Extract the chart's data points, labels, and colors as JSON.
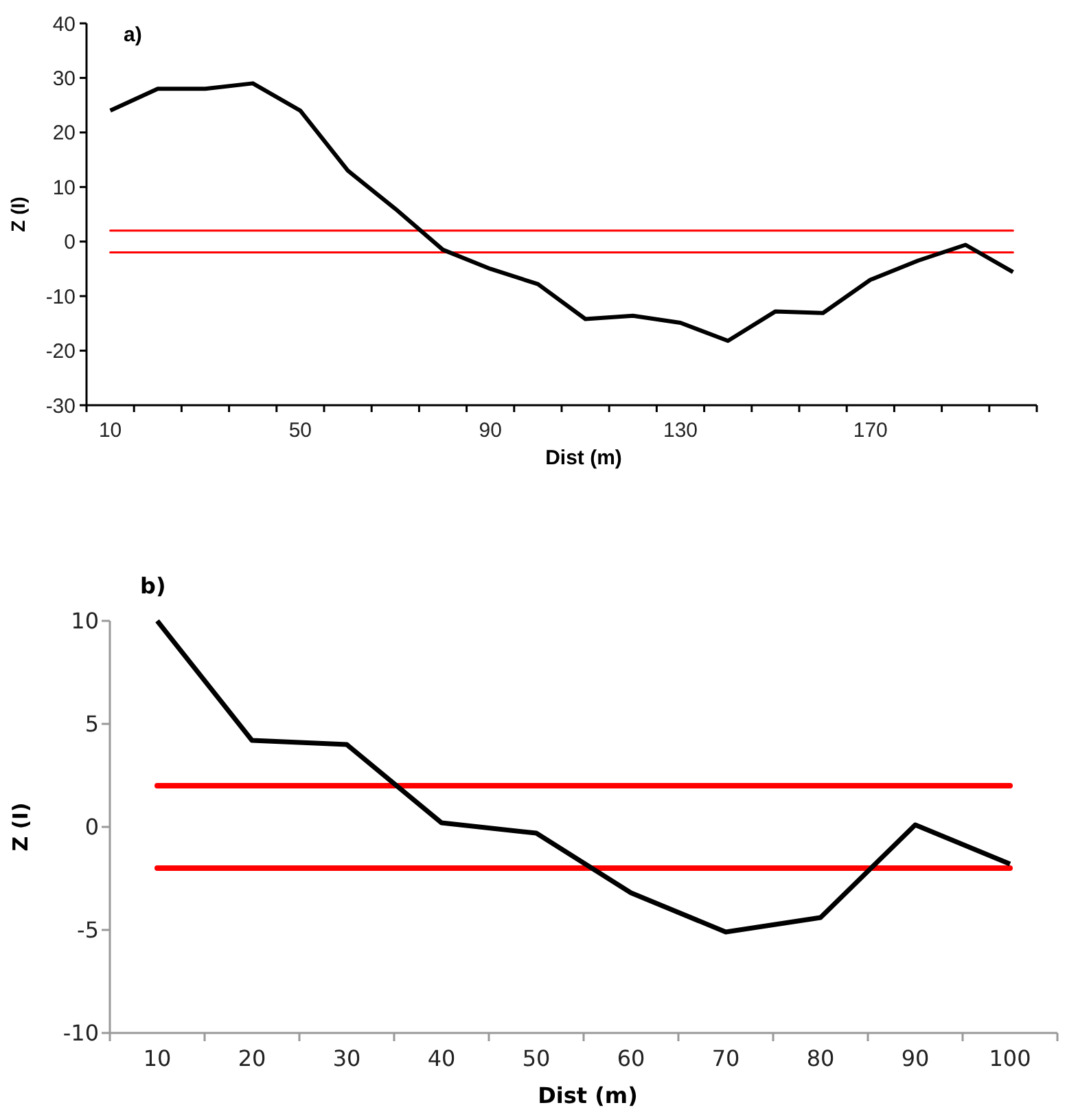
{
  "chart_data": [
    {
      "type": "line",
      "title": "a)",
      "xlabel": "Dist (m)",
      "ylabel": "Z (I)",
      "categories": [
        "10",
        null,
        null,
        null,
        "50",
        null,
        null,
        null,
        "90",
        null,
        null,
        null,
        "130",
        null,
        null,
        null,
        "170",
        null,
        null,
        null
      ],
      "series": [
        {
          "color": "#000000",
          "values": [
            24,
            28,
            28,
            29,
            24,
            13,
            6,
            -1.5,
            -5,
            -7.8,
            -14.2,
            -13.6,
            -14.9,
            -18.2,
            -12.8,
            -13.1,
            -7,
            -3.5,
            -0.6,
            -5.6
          ]
        }
      ],
      "ylim": [
        -30,
        40
      ],
      "yticks": [
        -30,
        -20,
        -10,
        0,
        10,
        20,
        30,
        40
      ],
      "grid": false,
      "marker": "none",
      "line_style": "solid",
      "ref_lines": [
        {
          "axis": "y",
          "value": 2,
          "color": "#ff0000"
        },
        {
          "axis": "y",
          "value": -2,
          "color": "#ff0000"
        }
      ]
    },
    {
      "type": "line",
      "title": "b)",
      "xlabel": "Dist (m)",
      "ylabel": "Z (I)",
      "categories": [
        "10",
        "20",
        "30",
        "40",
        "50",
        "60",
        "70",
        "80",
        "90",
        "100"
      ],
      "series": [
        {
          "color": "#000000",
          "values": [
            10,
            4.2,
            4,
            0.2,
            -0.3,
            -3.2,
            -5.1,
            -4.4,
            0.1,
            -1.8
          ]
        }
      ],
      "ylim": [
        -10,
        10
      ],
      "yticks": [
        -10,
        -5,
        0,
        5,
        10
      ],
      "grid": false,
      "marker": "none",
      "line_style": "solid",
      "ref_lines": [
        {
          "axis": "y",
          "value": 2,
          "color": "#ff0000"
        },
        {
          "axis": "y",
          "value": -2,
          "color": "#ff0000"
        }
      ]
    }
  ]
}
